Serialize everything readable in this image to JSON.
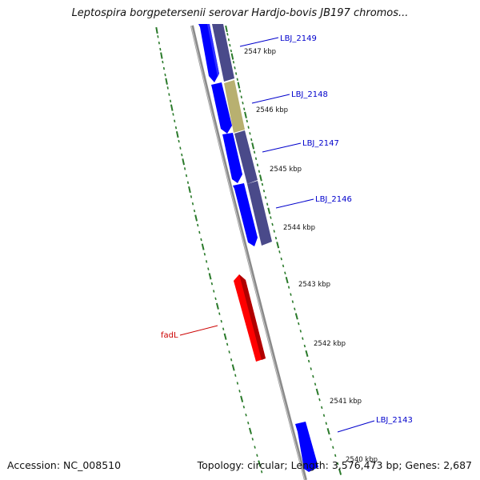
{
  "title": "Leptospira borgpetersenii serovar Hardjo-bovis JB197 chromos...",
  "footer": {
    "accession": "Accession: NC_008510",
    "summary": "Topology: circular; Length: 3,576,473 bp; Genes: 2,687"
  },
  "colors": {
    "forward_gene": "#0000ff",
    "reverse_gene": "#ff0000",
    "cog_purple": "#4a4a8a",
    "cog_khaki": "#b8b070",
    "backbone": "#808080",
    "ticks": "#2a7a2a",
    "label_blue": "#0000cc",
    "label_red": "#cc0000"
  },
  "genes": [
    {
      "label": "LBJ_2149",
      "strand": "forward",
      "cog": "purple"
    },
    {
      "label": "LBJ_2148",
      "strand": "forward",
      "cog": "khaki"
    },
    {
      "label": "LBJ_2147",
      "strand": "forward",
      "cog": "purple"
    },
    {
      "label": "LBJ_2146",
      "strand": "forward",
      "cog": "purple"
    },
    {
      "label": "fadL",
      "strand": "reverse",
      "cog": ""
    },
    {
      "label": "LBJ_2143",
      "strand": "forward",
      "cog": ""
    }
  ],
  "ticks": [
    "2547 kbp",
    "2546 kbp",
    "2545 kbp",
    "2544 kbp",
    "2543 kbp",
    "2542 kbp",
    "2541 kbp",
    "2540 kbp"
  ]
}
